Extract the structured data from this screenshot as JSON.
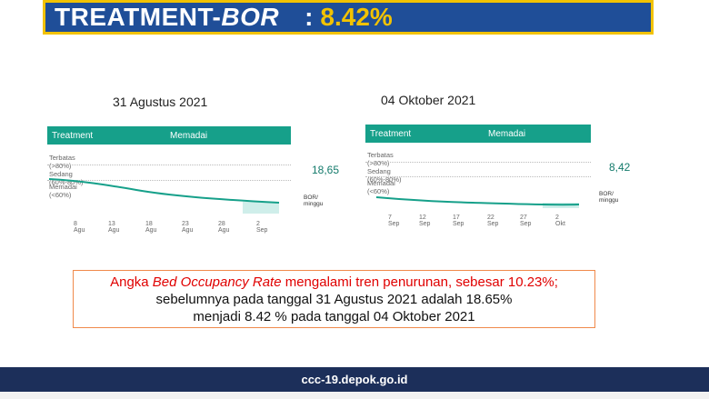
{
  "header": {
    "title_main": "TREATMENT-",
    "title_italic": "BOR",
    "separator": ":",
    "value": "8.42%"
  },
  "left_panel": {
    "date": "31 Agustus 2021",
    "head_col1": "Treatment",
    "head_col2": "Memadai",
    "levels": [
      "Terbatas (>80%)",
      "Sedang (60%-80%)",
      "Memadai (<60%)"
    ],
    "x_ticks": [
      "8 Agu",
      "13 Agu",
      "18 Agu",
      "23 Agu",
      "28 Agu",
      "2 Sep"
    ],
    "bor_value": "18,65",
    "bor_unit": "BOR/ minggu"
  },
  "right_panel": {
    "date": "04 Oktober 2021",
    "head_col1": "Treatment",
    "head_col2": "Memadai",
    "levels": [
      "Terbatas (>80%)",
      "Sedang (60%-80%)",
      "Memadai (<60%)"
    ],
    "x_ticks": [
      "7 Sep",
      "12 Sep",
      "17 Sep",
      "22 Sep",
      "27 Sep",
      "2 Okt"
    ],
    "bor_value": "8,42",
    "bor_unit": "BOR/ minggu"
  },
  "note": {
    "line1_a": "Angka ",
    "line1_italic": "Bed Occupancy Rate",
    "line1_b": " mengalami tren penurunan, sebesar 10.23%;",
    "line2": "sebelumnya pada tanggal 31 Agustus 2021 adalah  18.65%",
    "line3": "menjadi 8.42 % pada tanggal 04 Oktober 2021"
  },
  "footer": {
    "text": "ccc-19.depok.go.id"
  },
  "colors": {
    "brand_blue": "#1f4e98",
    "accent_yellow": "#f2c200",
    "teal": "#16a08a",
    "footer_navy": "#1c2f5a",
    "alert_red": "#e00000"
  }
}
